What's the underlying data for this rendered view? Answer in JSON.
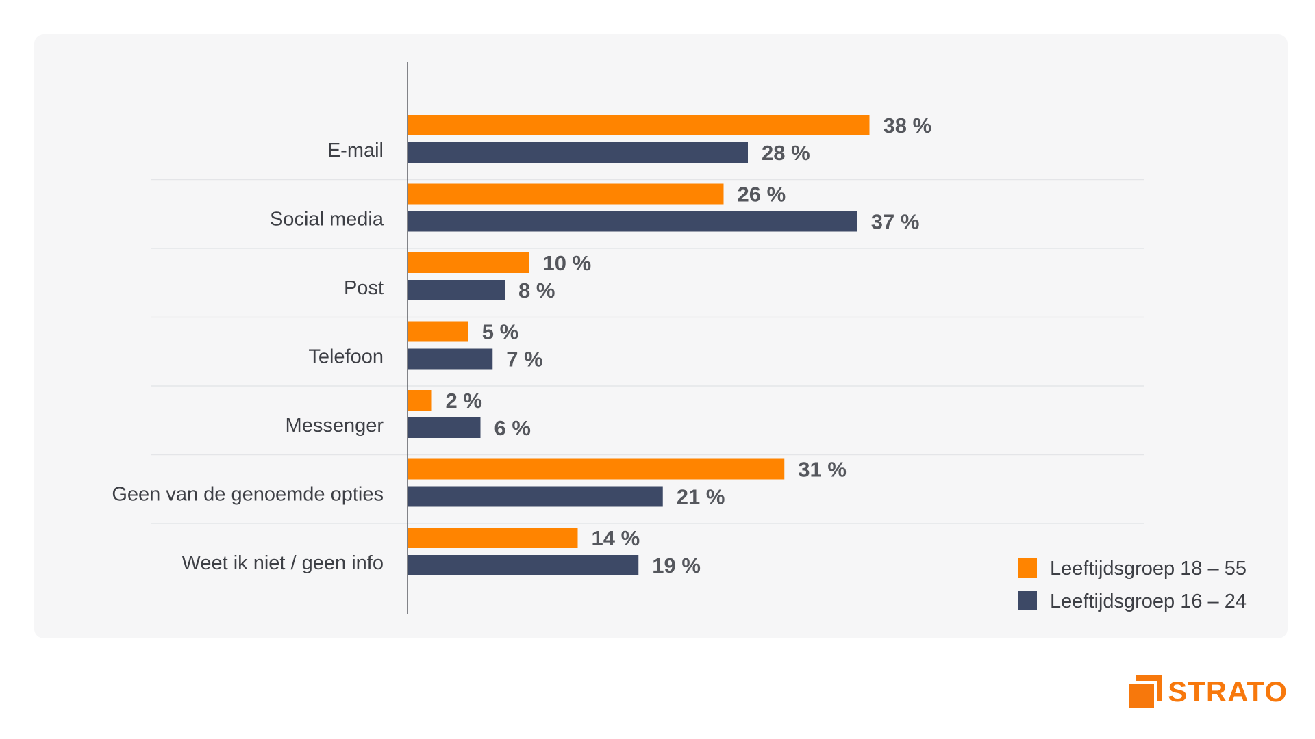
{
  "chart_data": {
    "type": "bar",
    "orientation": "horizontal",
    "categories": [
      "E-mail",
      "Social media",
      "Post",
      "Telefoon",
      "Messenger",
      "Geen van de genoemde opties",
      "Weet ik niet / geen info"
    ],
    "series": [
      {
        "name": "Leeftijdsgroep 18 – 55",
        "color": "#ff8400",
        "values": [
          38,
          26,
          10,
          5,
          2,
          31,
          14
        ]
      },
      {
        "name": "Leeftijdsgroep 16 – 24",
        "color": "#3d4966",
        "values": [
          28,
          37,
          8,
          7,
          6,
          21,
          19
        ]
      }
    ],
    "value_suffix": " %",
    "xlim": [
      0,
      50
    ],
    "grid": false,
    "legend_position": "bottom-right"
  },
  "brand": {
    "name": "STRATO",
    "color": "#f7780c"
  }
}
